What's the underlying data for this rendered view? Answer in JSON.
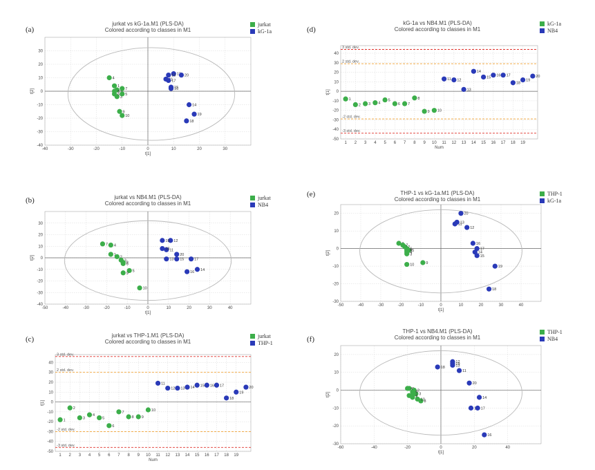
{
  "colors": {
    "green": "#3cae4a",
    "blue": "#2a3ab8",
    "grid": "#d9d9d9",
    "ellipse": "#b9b9b9",
    "axis": "#666666",
    "red_dev": "#e0302a",
    "orange_dev": "#f0a030"
  },
  "chart_data": [
    {
      "panel_label": "(a)",
      "type": "scatter",
      "title": "jurkat vs kG-1a.M1 (PLS-DA)",
      "subtitle": "Colored according to classes in M1",
      "xlabel": "t[1]",
      "ylabel": "t[2]",
      "xlim": [
        -40,
        40
      ],
      "ylim": [
        -40,
        40
      ],
      "xticks": [
        -40,
        -30,
        -20,
        -10,
        0,
        10,
        20,
        30
      ],
      "yticks": [
        -40,
        -30,
        -20,
        -10,
        0,
        10,
        20,
        30
      ],
      "ellipse": true,
      "legend": [
        "jurkat",
        "kG-1a"
      ],
      "series": [
        {
          "name": "jurkat",
          "points": [
            {
              "label": "1",
              "x": -13,
              "y": 4
            },
            {
              "label": "2",
              "x": -12,
              "y": 1
            },
            {
              "label": "3",
              "x": -12,
              "y": -4
            },
            {
              "label": "4",
              "x": -15,
              "y": 10
            },
            {
              "label": "5",
              "x": -10,
              "y": -2
            },
            {
              "label": "6",
              "x": -13,
              "y": -2
            },
            {
              "label": "7",
              "x": -10,
              "y": 2
            },
            {
              "label": "8",
              "x": -13,
              "y": 0
            },
            {
              "label": "9",
              "x": -11,
              "y": -15
            },
            {
              "label": "10",
              "x": -10,
              "y": -18
            }
          ]
        },
        {
          "name": "kG-1a",
          "points": [
            {
              "label": "11",
              "x": 7,
              "y": 9
            },
            {
              "label": "12",
              "x": 10,
              "y": 13
            },
            {
              "label": "13",
              "x": 8,
              "y": 12
            },
            {
              "label": "14",
              "x": 16,
              "y": -10
            },
            {
              "label": "15",
              "x": 9,
              "y": 3
            },
            {
              "label": "16",
              "x": 9,
              "y": 2
            },
            {
              "label": "17",
              "x": 8,
              "y": 8
            },
            {
              "label": "18",
              "x": 15,
              "y": -22
            },
            {
              "label": "19",
              "x": 18,
              "y": -17
            },
            {
              "label": "20",
              "x": 13,
              "y": 12
            }
          ]
        }
      ]
    },
    {
      "panel_label": "(b)",
      "type": "scatter",
      "title": "jurkat vs NB4.M1 (PLS-DA)",
      "subtitle": "Colored according to classes in M1",
      "xlabel": "t[1]",
      "ylabel": "t[2]",
      "xlim": [
        -50,
        50
      ],
      "ylim": [
        -40,
        40
      ],
      "xticks": [
        -50,
        -40,
        -30,
        -20,
        -10,
        0,
        10,
        20,
        30,
        40
      ],
      "yticks": [
        -40,
        -30,
        -20,
        -10,
        0,
        10,
        20,
        30
      ],
      "ellipse": true,
      "legend": [
        "jurkat",
        "NB4"
      ],
      "series": [
        {
          "name": "jurkat",
          "points": [
            {
              "label": "1",
              "x": -18,
              "y": 3
            },
            {
              "label": "2",
              "x": -15,
              "y": 1
            },
            {
              "label": "3",
              "x": -13,
              "y": -2
            },
            {
              "label": "4",
              "x": -18,
              "y": 11
            },
            {
              "label": "5",
              "x": -9,
              "y": -11
            },
            {
              "label": "6",
              "x": -12,
              "y": -5
            },
            {
              "label": "7",
              "x": -22,
              "y": 12
            },
            {
              "label": "8",
              "x": -12,
              "y": -4
            },
            {
              "label": "9",
              "x": -12,
              "y": -13
            },
            {
              "label": "10",
              "x": -4,
              "y": -26
            }
          ]
        },
        {
          "name": "NB4",
          "points": [
            {
              "label": "11",
              "x": 9,
              "y": 7
            },
            {
              "label": "12",
              "x": 11,
              "y": 15
            },
            {
              "label": "13",
              "x": 9,
              "y": -1
            },
            {
              "label": "14",
              "x": 24,
              "y": -10
            },
            {
              "label": "15",
              "x": 14,
              "y": -1
            },
            {
              "label": "16",
              "x": 19,
              "y": -12
            },
            {
              "label": "17",
              "x": 21,
              "y": -1
            },
            {
              "label": "18",
              "x": 7,
              "y": 8
            },
            {
              "label": "19",
              "x": 7,
              "y": 15
            },
            {
              "label": "20",
              "x": 14,
              "y": 3
            }
          ]
        }
      ]
    },
    {
      "panel_label": "(c)",
      "type": "scatter",
      "title": "jurkat vs THP-1.M1 (PLS-DA)",
      "subtitle": "Colored according to classes in M1",
      "xlabel": "Num",
      "ylabel": "t[1]",
      "xlim": [
        0.5,
        20.5
      ],
      "ylim": [
        -50,
        48
      ],
      "xticks": [
        1,
        2,
        3,
        4,
        5,
        6,
        7,
        8,
        9,
        10,
        11,
        12,
        13,
        14,
        15,
        16,
        17,
        18,
        19
      ],
      "yticks": [
        -50,
        -40,
        -30,
        -20,
        -10,
        0,
        10,
        20,
        30,
        40
      ],
      "std_dev_lines": [
        {
          "y": 46,
          "label": "3 std. dev.",
          "color": "red"
        },
        {
          "y": 30,
          "label": "2 std. dev.",
          "color": "orange"
        },
        {
          "y": -30,
          "label": "-2 std. dev.",
          "color": "orange"
        },
        {
          "y": -46,
          "label": "-3 std. dev.",
          "color": "red"
        }
      ],
      "legend": [
        "jurkat",
        "THP-1"
      ],
      "series": [
        {
          "name": "jurkat",
          "points": [
            {
              "label": "1",
              "x": 1,
              "y": -18
            },
            {
              "label": "2",
              "x": 2,
              "y": -6
            },
            {
              "label": "3",
              "x": 3,
              "y": -16
            },
            {
              "label": "4",
              "x": 4,
              "y": -13
            },
            {
              "label": "5",
              "x": 5,
              "y": -16
            },
            {
              "label": "6",
              "x": 6,
              "y": -24
            },
            {
              "label": "7",
              "x": 7,
              "y": -10
            },
            {
              "label": "8",
              "x": 8,
              "y": -15
            },
            {
              "label": "9",
              "x": 9,
              "y": -15
            },
            {
              "label": "10",
              "x": 10,
              "y": -8
            }
          ]
        },
        {
          "name": "THP-1",
          "points": [
            {
              "label": "11",
              "x": 11,
              "y": 19
            },
            {
              "label": "12",
              "x": 12,
              "y": 14
            },
            {
              "label": "13",
              "x": 13,
              "y": 14
            },
            {
              "label": "14",
              "x": 14,
              "y": 15
            },
            {
              "label": "15",
              "x": 15,
              "y": 17
            },
            {
              "label": "16",
              "x": 16,
              "y": 17
            },
            {
              "label": "17",
              "x": 17,
              "y": 17
            },
            {
              "label": "18",
              "x": 18,
              "y": 4
            },
            {
              "label": "19",
              "x": 19,
              "y": 10
            },
            {
              "label": "20",
              "x": 20,
              "y": 15
            }
          ]
        }
      ]
    },
    {
      "panel_label": "(d)",
      "type": "scatter",
      "title": "kG-1a vs NB4.M1 (PLS-DA)",
      "subtitle": "Colored according to classes in M1",
      "xlabel": "Num",
      "ylabel": "t[1]",
      "xlim": [
        0.5,
        20.5
      ],
      "ylim": [
        -50,
        48
      ],
      "xticks": [
        1,
        2,
        3,
        4,
        5,
        6,
        7,
        8,
        9,
        10,
        11,
        12,
        13,
        14,
        15,
        16,
        17,
        18,
        19
      ],
      "yticks": [
        -50,
        -40,
        -30,
        -20,
        -10,
        0,
        10,
        20,
        30,
        40
      ],
      "std_dev_lines": [
        {
          "y": 44,
          "label": "3 std. dev.",
          "color": "red"
        },
        {
          "y": 29,
          "label": "2 std. dev.",
          "color": "orange"
        },
        {
          "y": -29,
          "label": "-2 std. dev.",
          "color": "orange"
        },
        {
          "y": -44,
          "label": "-3 std. dev.",
          "color": "red"
        }
      ],
      "legend": [
        "kG-1a",
        "NB4"
      ],
      "series": [
        {
          "name": "kG-1a",
          "points": [
            {
              "label": "1",
              "x": 1,
              "y": -8
            },
            {
              "label": "2",
              "x": 2,
              "y": -14
            },
            {
              "label": "3",
              "x": 3,
              "y": -13
            },
            {
              "label": "4",
              "x": 4,
              "y": -12
            },
            {
              "label": "5",
              "x": 5,
              "y": -9
            },
            {
              "label": "6",
              "x": 6,
              "y": -13
            },
            {
              "label": "7",
              "x": 7,
              "y": -13
            },
            {
              "label": "8",
              "x": 8,
              "y": -7
            },
            {
              "label": "9",
              "x": 9,
              "y": -21
            },
            {
              "label": "10",
              "x": 10,
              "y": -20
            }
          ]
        },
        {
          "name": "NB4",
          "points": [
            {
              "label": "11",
              "x": 11,
              "y": 13
            },
            {
              "label": "12",
              "x": 12,
              "y": 12
            },
            {
              "label": "13",
              "x": 13,
              "y": 2
            },
            {
              "label": "14",
              "x": 14,
              "y": 21
            },
            {
              "label": "15",
              "x": 15,
              "y": 15
            },
            {
              "label": "16",
              "x": 16,
              "y": 17
            },
            {
              "label": "17",
              "x": 17,
              "y": 17
            },
            {
              "label": "18",
              "x": 18,
              "y": 9
            },
            {
              "label": "19",
              "x": 19,
              "y": 12
            },
            {
              "label": "20",
              "x": 20,
              "y": 16
            }
          ]
        }
      ]
    },
    {
      "panel_label": "(e)",
      "type": "scatter",
      "title": "THP-1 vs kG-1a.M1 (PLS-DA)",
      "subtitle": "Colored according to classes in M1",
      "xlabel": "t[1]",
      "ylabel": "t[2]",
      "xlim": [
        -50,
        50
      ],
      "ylim": [
        -30,
        25
      ],
      "xticks": [
        -50,
        -40,
        -30,
        -20,
        -10,
        0,
        10,
        20,
        30,
        40
      ],
      "yticks": [
        -30,
        -20,
        -10,
        0,
        10,
        20
      ],
      "ellipse": true,
      "legend": [
        "THP-1",
        "kG-1a"
      ],
      "series": [
        {
          "name": "THP-1",
          "points": [
            {
              "label": "1",
              "x": -21,
              "y": 3
            },
            {
              "label": "2",
              "x": -18,
              "y": 1
            },
            {
              "label": "3",
              "x": -17,
              "y": -3
            },
            {
              "label": "4",
              "x": -17,
              "y": -2
            },
            {
              "label": "5",
              "x": -16,
              "y": -1
            },
            {
              "label": "6",
              "x": -17,
              "y": 0
            },
            {
              "label": "7",
              "x": -19,
              "y": 2
            },
            {
              "label": "8",
              "x": -17,
              "y": -1
            },
            {
              "label": "9",
              "x": -9,
              "y": -8
            },
            {
              "label": "10",
              "x": -17,
              "y": -9
            }
          ]
        },
        {
          "name": "kG-1a",
          "points": [
            {
              "label": "11",
              "x": 7,
              "y": 14
            },
            {
              "label": "12",
              "x": 13,
              "y": 12
            },
            {
              "label": "13",
              "x": 8,
              "y": 15
            },
            {
              "label": "14",
              "x": 17,
              "y": -2
            },
            {
              "label": "15",
              "x": 18,
              "y": -4
            },
            {
              "label": "16",
              "x": 16,
              "y": 3
            },
            {
              "label": "17",
              "x": 18,
              "y": 0
            },
            {
              "label": "18",
              "x": 24,
              "y": -23
            },
            {
              "label": "19",
              "x": 27,
              "y": -10
            },
            {
              "label": "20",
              "x": 10,
              "y": 20
            }
          ]
        }
      ]
    },
    {
      "panel_label": "(f)",
      "type": "scatter",
      "title": "THP-1 vs NB4.M1 (PLS-DA)",
      "subtitle": "Colored according to classes in M1",
      "xlabel": "t[1]",
      "ylabel": "t[2]",
      "xlim": [
        -60,
        60
      ],
      "ylim": [
        -30,
        25
      ],
      "xticks": [
        -60,
        -40,
        -20,
        0,
        20,
        40
      ],
      "yticks": [
        -30,
        -20,
        -10,
        0,
        10,
        20
      ],
      "ellipse": true,
      "legend": [
        "THP-1",
        "NB4"
      ],
      "series": [
        {
          "name": "THP-1",
          "points": [
            {
              "label": "1",
              "x": -19,
              "y": 1
            },
            {
              "label": "2",
              "x": -16,
              "y": 0
            },
            {
              "label": "3",
              "x": -15,
              "y": -2
            },
            {
              "label": "4",
              "x": -20,
              "y": 1
            },
            {
              "label": "5",
              "x": -17,
              "y": -1
            },
            {
              "label": "6",
              "x": -17,
              "y": -4
            },
            {
              "label": "7",
              "x": -19,
              "y": -3
            },
            {
              "label": "8",
              "x": -12,
              "y": -6
            },
            {
              "label": "9",
              "x": -17,
              "y": -3
            },
            {
              "label": "10",
              "x": -14,
              "y": -5
            }
          ]
        },
        {
          "name": "NB4",
          "points": [
            {
              "label": "11",
              "x": 11,
              "y": 11
            },
            {
              "label": "12",
              "x": 7,
              "y": 16
            },
            {
              "label": "13",
              "x": 7,
              "y": 14
            },
            {
              "label": "14",
              "x": 23,
              "y": -4
            },
            {
              "label": "15",
              "x": 18,
              "y": -10
            },
            {
              "label": "16",
              "x": 26,
              "y": -25
            },
            {
              "label": "17",
              "x": 22,
              "y": -10
            },
            {
              "label": "18",
              "x": -2,
              "y": 13
            },
            {
              "label": "19",
              "x": 7,
              "y": 15
            },
            {
              "label": "20",
              "x": 17,
              "y": 4
            }
          ]
        }
      ]
    }
  ]
}
